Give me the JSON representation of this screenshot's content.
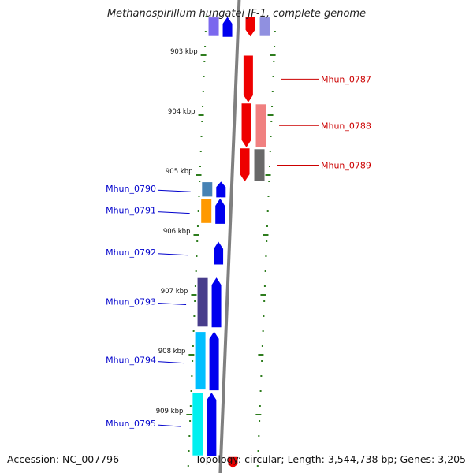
{
  "title": "Methanospirillum hungatei JF-1, complete genome",
  "footer": {
    "accession": "Accession: NC_007796",
    "topology": "Topology: circular; Length: 3,544,738 bp; Genes: 3,205"
  },
  "colors": {
    "backbone": "#808080",
    "tick": "#2e7d1e",
    "forward_strand": "#0000ee",
    "reverse_strand": "#ee0000",
    "forward_label": "#0000cc",
    "reverse_label": "#cc0000"
  },
  "ruler": [
    {
      "label": "903 kbp",
      "kbp": 903
    },
    {
      "label": "904 kbp",
      "kbp": 904
    },
    {
      "label": "905 kbp",
      "kbp": 905
    },
    {
      "label": "906 kbp",
      "kbp": 906
    },
    {
      "label": "907 kbp",
      "kbp": 907
    },
    {
      "label": "908 kbp",
      "kbp": 908
    },
    {
      "label": "909 kbp",
      "kbp": 909
    }
  ],
  "genes": [
    {
      "name": "",
      "strand": "-",
      "start_kbp": 902.35,
      "end_kbp": 902.7,
      "function_color": "#9090e0"
    },
    {
      "name": "",
      "strand": "+",
      "start_kbp": 902.35,
      "end_kbp": 902.7,
      "function_color": "#7b68ee"
    },
    {
      "name": "Mhun_0787",
      "strand": "-",
      "start_kbp": 903.0,
      "end_kbp": 903.8,
      "function_color": null
    },
    {
      "name": "Mhun_0788",
      "strand": "-",
      "start_kbp": 903.8,
      "end_kbp": 904.55,
      "function_color": "#f08080"
    },
    {
      "name": "Mhun_0789",
      "strand": "-",
      "start_kbp": 904.55,
      "end_kbp": 905.12,
      "function_color": "#696969"
    },
    {
      "name": "Mhun_0790",
      "strand": "+",
      "start_kbp": 905.1,
      "end_kbp": 905.38,
      "function_color": "#4682b4"
    },
    {
      "name": "Mhun_0791",
      "strand": "+",
      "start_kbp": 905.38,
      "end_kbp": 905.82,
      "function_color": "#ff9900"
    },
    {
      "name": "Mhun_0792",
      "strand": "+",
      "start_kbp": 906.1,
      "end_kbp": 906.5,
      "function_color": null
    },
    {
      "name": "Mhun_0793",
      "strand": "+",
      "start_kbp": 906.7,
      "end_kbp": 907.55,
      "function_color": "#483d8b"
    },
    {
      "name": "Mhun_0794",
      "strand": "+",
      "start_kbp": 907.6,
      "end_kbp": 908.6,
      "function_color": "#00bfff"
    },
    {
      "name": "Mhun_0795",
      "strand": "+",
      "start_kbp": 908.62,
      "end_kbp": 909.7,
      "function_color": "#00f0f0"
    },
    {
      "name": "",
      "strand": "-",
      "start_kbp": 909.7,
      "end_kbp": 909.9,
      "function_color": null
    }
  ]
}
